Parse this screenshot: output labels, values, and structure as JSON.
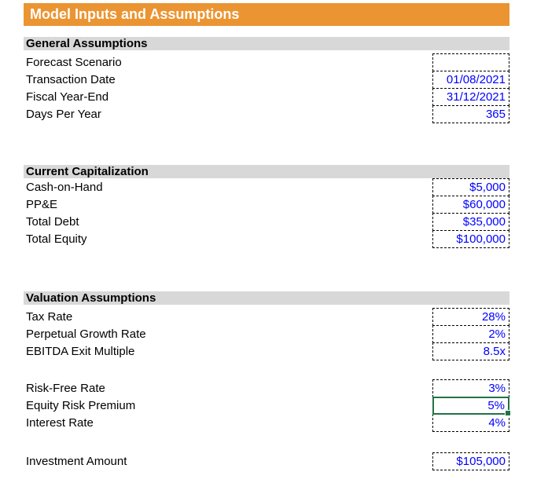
{
  "title": "Model Inputs and Assumptions",
  "colors": {
    "accent_orange": "#EB9432",
    "section_header_bg": "#D8D8D8",
    "input_text_blue": "#0000FF",
    "selection_green": "#217346"
  },
  "sections": [
    {
      "header": "General Assumptions",
      "groups": [
        {
          "rows": [
            {
              "label": "Forecast Scenario",
              "value": ""
            },
            {
              "label": "Transaction Date",
              "value": "01/08/2021"
            },
            {
              "label": "Fiscal Year-End",
              "value": "31/12/2021"
            },
            {
              "label": "Days Per Year",
              "value": "365"
            }
          ]
        }
      ]
    },
    {
      "header": "Current Capitalization",
      "groups": [
        {
          "rows": [
            {
              "label": "Cash-on-Hand",
              "value": "$5,000"
            },
            {
              "label": "PP&E",
              "value": "$60,000"
            },
            {
              "label": "Total Debt",
              "value": "$35,000"
            },
            {
              "label": "Total Equity",
              "value": "$100,000"
            }
          ]
        }
      ]
    },
    {
      "header": "Valuation Assumptions",
      "groups": [
        {
          "rows": [
            {
              "label": "Tax Rate",
              "value": "28%"
            },
            {
              "label": "Perpetual Growth Rate",
              "value": "2%"
            },
            {
              "label": "EBITDA Exit Multiple",
              "value": "8.5x"
            }
          ]
        },
        {
          "rows": [
            {
              "label": "Risk-Free Rate",
              "value": "3%"
            },
            {
              "label": "Equity Risk Premium",
              "value": "5%",
              "selected": true
            },
            {
              "label": "Interest Rate",
              "value": "4%"
            }
          ]
        },
        {
          "rows": [
            {
              "label": "Investment Amount",
              "value": "$105,000"
            }
          ]
        }
      ]
    }
  ]
}
